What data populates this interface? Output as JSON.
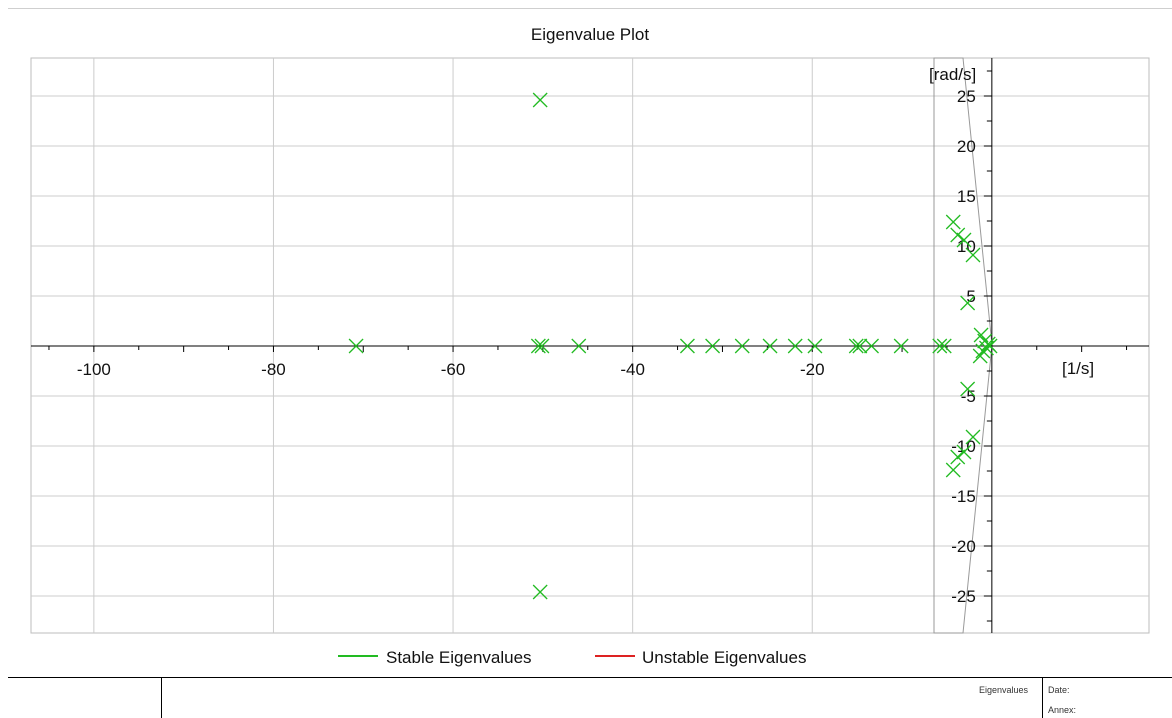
{
  "chart_data": {
    "type": "scatter",
    "title": "Eigenvalue Plot",
    "xlabel": "[1/s]",
    "ylabel": "[rad/s]",
    "xlim": [
      -107,
      17.5
    ],
    "ylim": [
      -28.7,
      28.8
    ],
    "x_ticks": [
      -100,
      -80,
      -60,
      -40,
      -20
    ],
    "y_ticks": [
      25,
      20,
      15,
      10,
      5,
      -5,
      -10,
      -15,
      -20,
      -25
    ],
    "grid": true,
    "legend": [
      "Stable Eigenvalues",
      "Unstable Eigenvalues"
    ],
    "legend_placement": "bottom-center",
    "series": [
      {
        "name": "Stable Eigenvalues",
        "color": "#22bb22",
        "points": [
          [
            -50.3,
            24.6
          ],
          [
            -50.3,
            -24.6
          ],
          [
            -70.8,
            0
          ],
          [
            -50.5,
            0
          ],
          [
            -50.1,
            0
          ],
          [
            -46,
            0
          ],
          [
            -33.9,
            0
          ],
          [
            -31.1,
            0
          ],
          [
            -27.8,
            0
          ],
          [
            -24.7,
            0
          ],
          [
            -21.9,
            0
          ],
          [
            -19.7,
            0
          ],
          [
            -15.1,
            0
          ],
          [
            -14.7,
            0
          ],
          [
            -13.4,
            0
          ],
          [
            -10.1,
            0
          ],
          [
            -5.8,
            0
          ],
          [
            -5.3,
            0
          ],
          [
            -4.3,
            12.4
          ],
          [
            -3.8,
            11.1
          ],
          [
            -3.1,
            10.6
          ],
          [
            -2.1,
            9.1
          ],
          [
            -2.7,
            4.3
          ],
          [
            -4.3,
            -12.4
          ],
          [
            -3.8,
            -11.1
          ],
          [
            -3.1,
            -10.6
          ],
          [
            -2.1,
            -9.1
          ],
          [
            -2.7,
            -4.3
          ],
          [
            -1.2,
            1.1
          ],
          [
            -0.8,
            0.5
          ],
          [
            -0.4,
            0.2
          ],
          [
            -0.2,
            0
          ],
          [
            -0.6,
            -0.2
          ],
          [
            -1.0,
            -0.5
          ],
          [
            -1.3,
            -1.0
          ]
        ]
      },
      {
        "name": "Unstable Eigenvalues",
        "color": "#dd2222",
        "points": []
      }
    ]
  },
  "footer": {
    "label": "Eigenvalues",
    "date_label": "Date:",
    "annex_label": "Annex:"
  }
}
